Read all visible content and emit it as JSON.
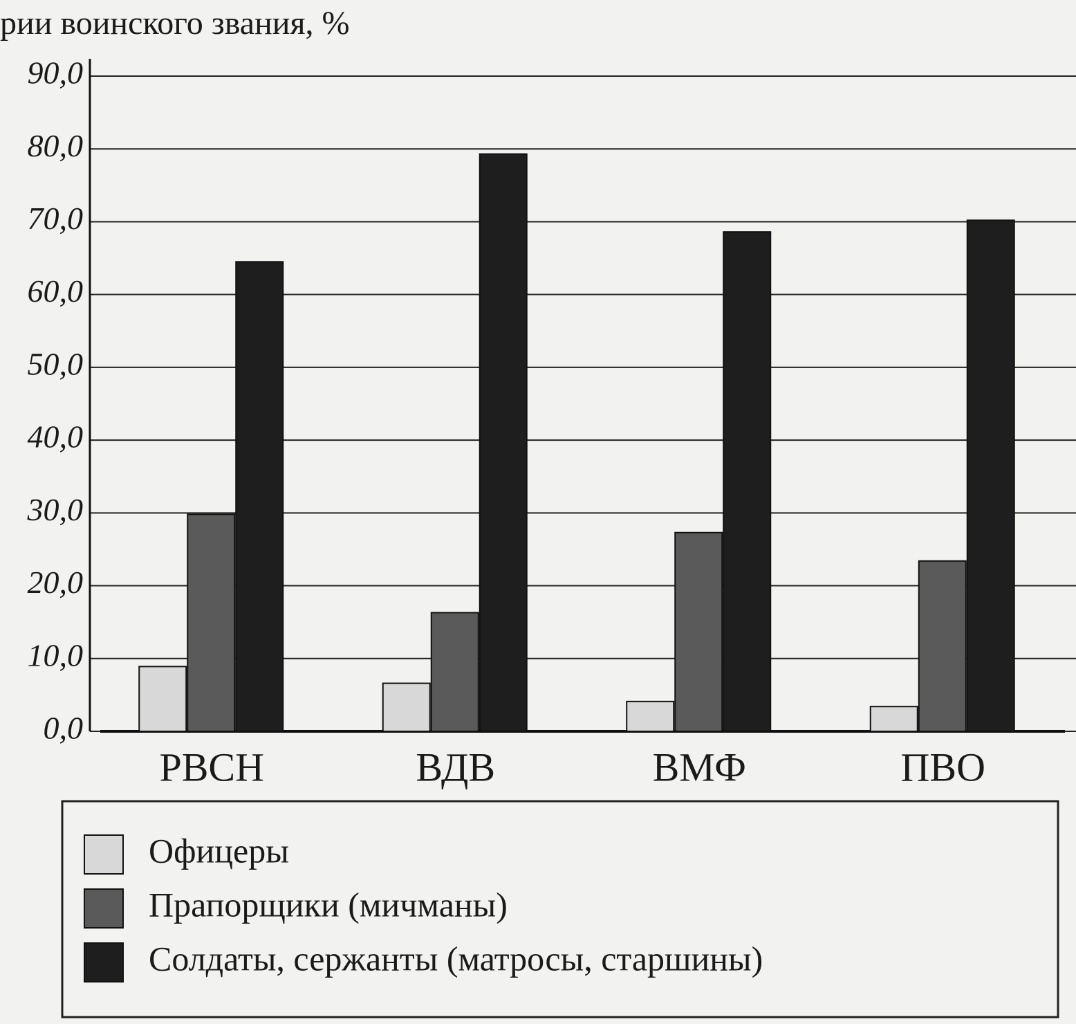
{
  "chart_data": {
    "type": "bar",
    "title": "рии воинского звания, %",
    "categories": [
      "РВСН",
      "ВДВ",
      "ВМФ",
      "ПВО"
    ],
    "series": [
      {
        "name": "Офицеры",
        "color": "#d8d8d8",
        "values": [
          8.9,
          6.6,
          4.1,
          3.4
        ]
      },
      {
        "name": "Прапорщики (мичманы)",
        "color": "#5a5a5a",
        "values": [
          29.8,
          16.3,
          27.3,
          23.4
        ]
      },
      {
        "name": "Солдаты, сержанты (матросы, старшины)",
        "color": "#1e1e1e",
        "values": [
          64.5,
          79.3,
          68.6,
          70.2
        ]
      }
    ],
    "ylim": [
      0,
      90
    ],
    "yticks": [
      {
        "value": 0,
        "label": "0,0"
      },
      {
        "value": 10,
        "label": "10,0"
      },
      {
        "value": 20,
        "label": "20,0"
      },
      {
        "value": 30,
        "label": "30,0"
      },
      {
        "value": 40,
        "label": "40,0"
      },
      {
        "value": 50,
        "label": "50,0"
      },
      {
        "value": 60,
        "label": "60,0"
      },
      {
        "value": 70,
        "label": "70,0"
      },
      {
        "value": 80,
        "label": "80,0"
      },
      {
        "value": 90,
        "label": "90,0"
      }
    ],
    "grid": true
  }
}
